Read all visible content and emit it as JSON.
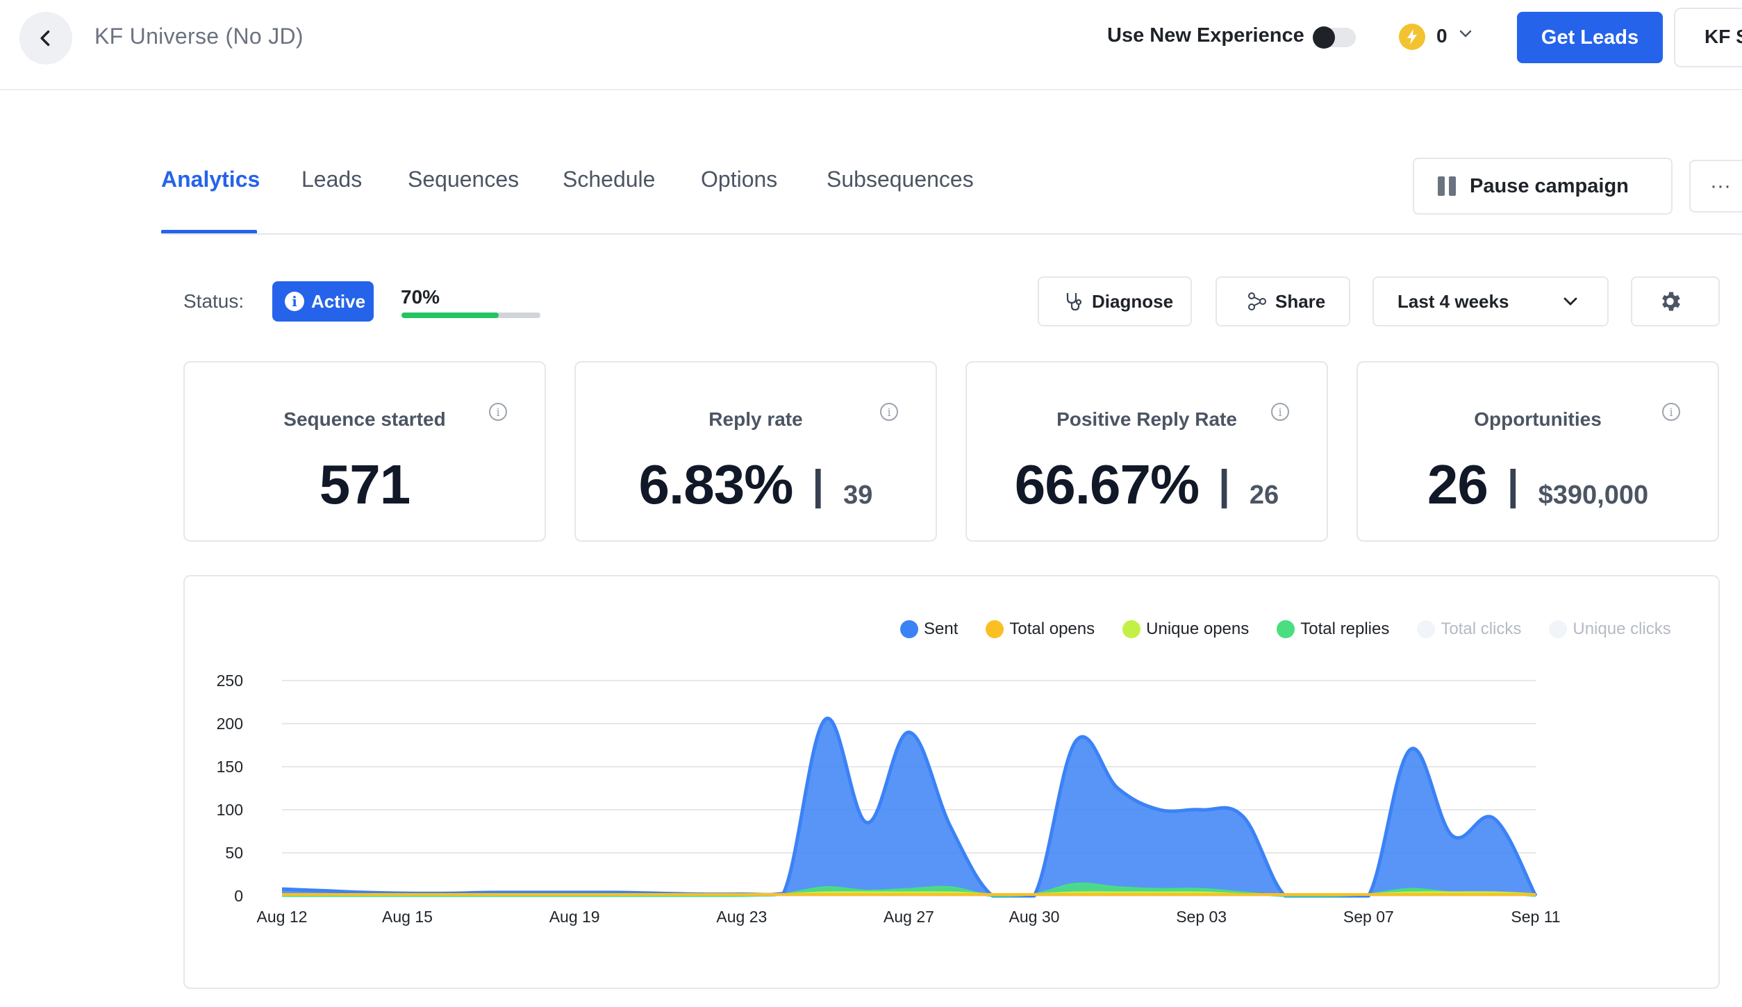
{
  "header": {
    "title": "KF Universe (No JD)",
    "new_experience_label": "Use New Experience",
    "credits": "0",
    "get_leads": "Get Leads",
    "workspace": "KF S"
  },
  "tabs": [
    {
      "label": "Analytics"
    },
    {
      "label": "Leads"
    },
    {
      "label": "Sequences"
    },
    {
      "label": "Schedule"
    },
    {
      "label": "Options"
    },
    {
      "label": "Subsequences"
    }
  ],
  "actions": {
    "pause_campaign": "Pause campaign",
    "more": "···"
  },
  "status": {
    "label": "Status:",
    "badge": "Active",
    "progress_text": "70%",
    "progress_value": 0.7,
    "progress_color": "#22c55e"
  },
  "controls": {
    "diagnose": "Diagnose",
    "share": "Share",
    "range": "Last 4 weeks"
  },
  "cards": [
    {
      "title": "Sequence started",
      "value": "571"
    },
    {
      "title": "Reply rate",
      "value": "6.83%",
      "sep": "|",
      "secondary": "39"
    },
    {
      "title": "Positive Reply Rate",
      "value": "66.67%",
      "sep": "|",
      "secondary": "26"
    },
    {
      "title": "Opportunities",
      "value": "26",
      "sep": "|",
      "secondary": "$390,000"
    }
  ],
  "legend": [
    {
      "label": "Sent",
      "color": "#3b82f6",
      "dim": false
    },
    {
      "label": "Total opens",
      "color": "#fbbf24",
      "dim": false
    },
    {
      "label": "Unique opens",
      "color": "#c3f046",
      "dim": false
    },
    {
      "label": "Total replies",
      "color": "#4ade80",
      "dim": false
    },
    {
      "label": "Total clicks",
      "color": "#f1f5f9",
      "dim": true
    },
    {
      "label": "Unique clicks",
      "color": "#f1f5f9",
      "dim": true
    }
  ],
  "chart_data": {
    "type": "area",
    "x": [
      "Aug 12",
      "Aug 13",
      "Aug 14",
      "Aug 15",
      "Aug 16",
      "Aug 17",
      "Aug 18",
      "Aug 19",
      "Aug 20",
      "Aug 21",
      "Aug 22",
      "Aug 23",
      "Aug 24",
      "Aug 25",
      "Aug 26",
      "Aug 27",
      "Aug 28",
      "Aug 29",
      "Aug 30",
      "Aug 31",
      "Sep 01",
      "Sep 02",
      "Sep 03",
      "Sep 04",
      "Sep 05",
      "Sep 06",
      "Sep 07",
      "Sep 08",
      "Sep 09",
      "Sep 10",
      "Sep 11"
    ],
    "x_tick_labels": [
      "Aug 12",
      "Aug 15",
      "Aug 19",
      "Aug 23",
      "Aug 27",
      "Aug 30",
      "Sep 03",
      "Sep 07",
      "Sep 11"
    ],
    "y_ticks": [
      0,
      50,
      100,
      150,
      200,
      250
    ],
    "ylim": [
      0,
      250
    ],
    "series": [
      {
        "name": "Sent",
        "color": "#3b82f6",
        "values": [
          8,
          6,
          4,
          3,
          3,
          4,
          4,
          4,
          4,
          3,
          2,
          2,
          3,
          205,
          85,
          190,
          80,
          0,
          0,
          180,
          125,
          100,
          100,
          92,
          0,
          0,
          0,
          170,
          70,
          90,
          0
        ]
      },
      {
        "name": "Total replies",
        "color": "#4ade80",
        "values": [
          0,
          0,
          0,
          0,
          0,
          0,
          0,
          0,
          0,
          0,
          0,
          0,
          2,
          10,
          6,
          8,
          10,
          0,
          2,
          14,
          10,
          8,
          8,
          4,
          0,
          0,
          2,
          8,
          4,
          4,
          0
        ]
      },
      {
        "name": "Unique opens",
        "color": "#c3f046",
        "values": [
          2,
          2,
          2,
          2,
          2,
          2,
          2,
          2,
          2,
          2,
          2,
          2,
          2,
          4,
          4,
          4,
          4,
          2,
          2,
          4,
          4,
          4,
          4,
          2,
          2,
          2,
          2,
          4,
          4,
          4,
          2
        ]
      },
      {
        "name": "Total opens",
        "color": "#fbbf24",
        "values": [
          2,
          2,
          2,
          2,
          2,
          2,
          2,
          2,
          2,
          2,
          2,
          2,
          2,
          2,
          2,
          2,
          2,
          2,
          2,
          2,
          2,
          2,
          2,
          2,
          2,
          2,
          2,
          2,
          2,
          2,
          2
        ]
      }
    ]
  }
}
